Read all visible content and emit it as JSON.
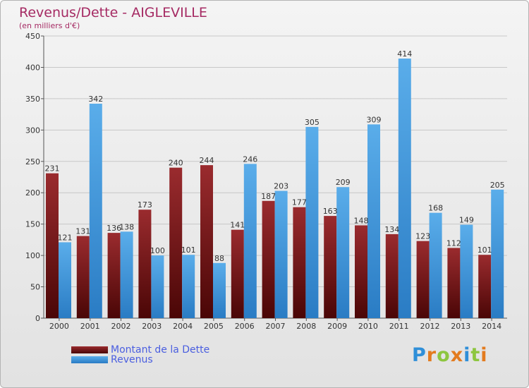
{
  "title": "Revenus/Dette - AIGLEVILLE",
  "subtitle": "(en milliers d'€)",
  "logo_text": "Proxiti",
  "colors": {
    "dette": "#8b1a1a",
    "revenus": "#3a9be0",
    "title": "#a52a63",
    "legend_text": "#4a5ee0"
  },
  "chart_data": {
    "type": "bar",
    "title": "Revenus/Dette - AIGLEVILLE",
    "ylabel": "(en milliers d'€)",
    "categories": [
      "2000",
      "2001",
      "2002",
      "2003",
      "2004",
      "2005",
      "2006",
      "2007",
      "2008",
      "2009",
      "2010",
      "2011",
      "2012",
      "2013",
      "2014"
    ],
    "series": [
      {
        "name": "Montant de la Dette",
        "values": [
          231,
          131,
          136,
          173,
          240,
          244,
          141,
          187,
          177,
          163,
          148,
          134,
          123,
          112,
          101
        ]
      },
      {
        "name": "Revenus",
        "values": [
          121,
          342,
          138,
          100,
          101,
          88,
          246,
          203,
          305,
          209,
          309,
          414,
          168,
          149,
          205
        ]
      }
    ],
    "ylim": [
      0,
      450
    ],
    "yticks": [
      0,
      50,
      100,
      150,
      200,
      250,
      300,
      350,
      400,
      450
    ],
    "grid": true,
    "legend": "bottom-left"
  }
}
